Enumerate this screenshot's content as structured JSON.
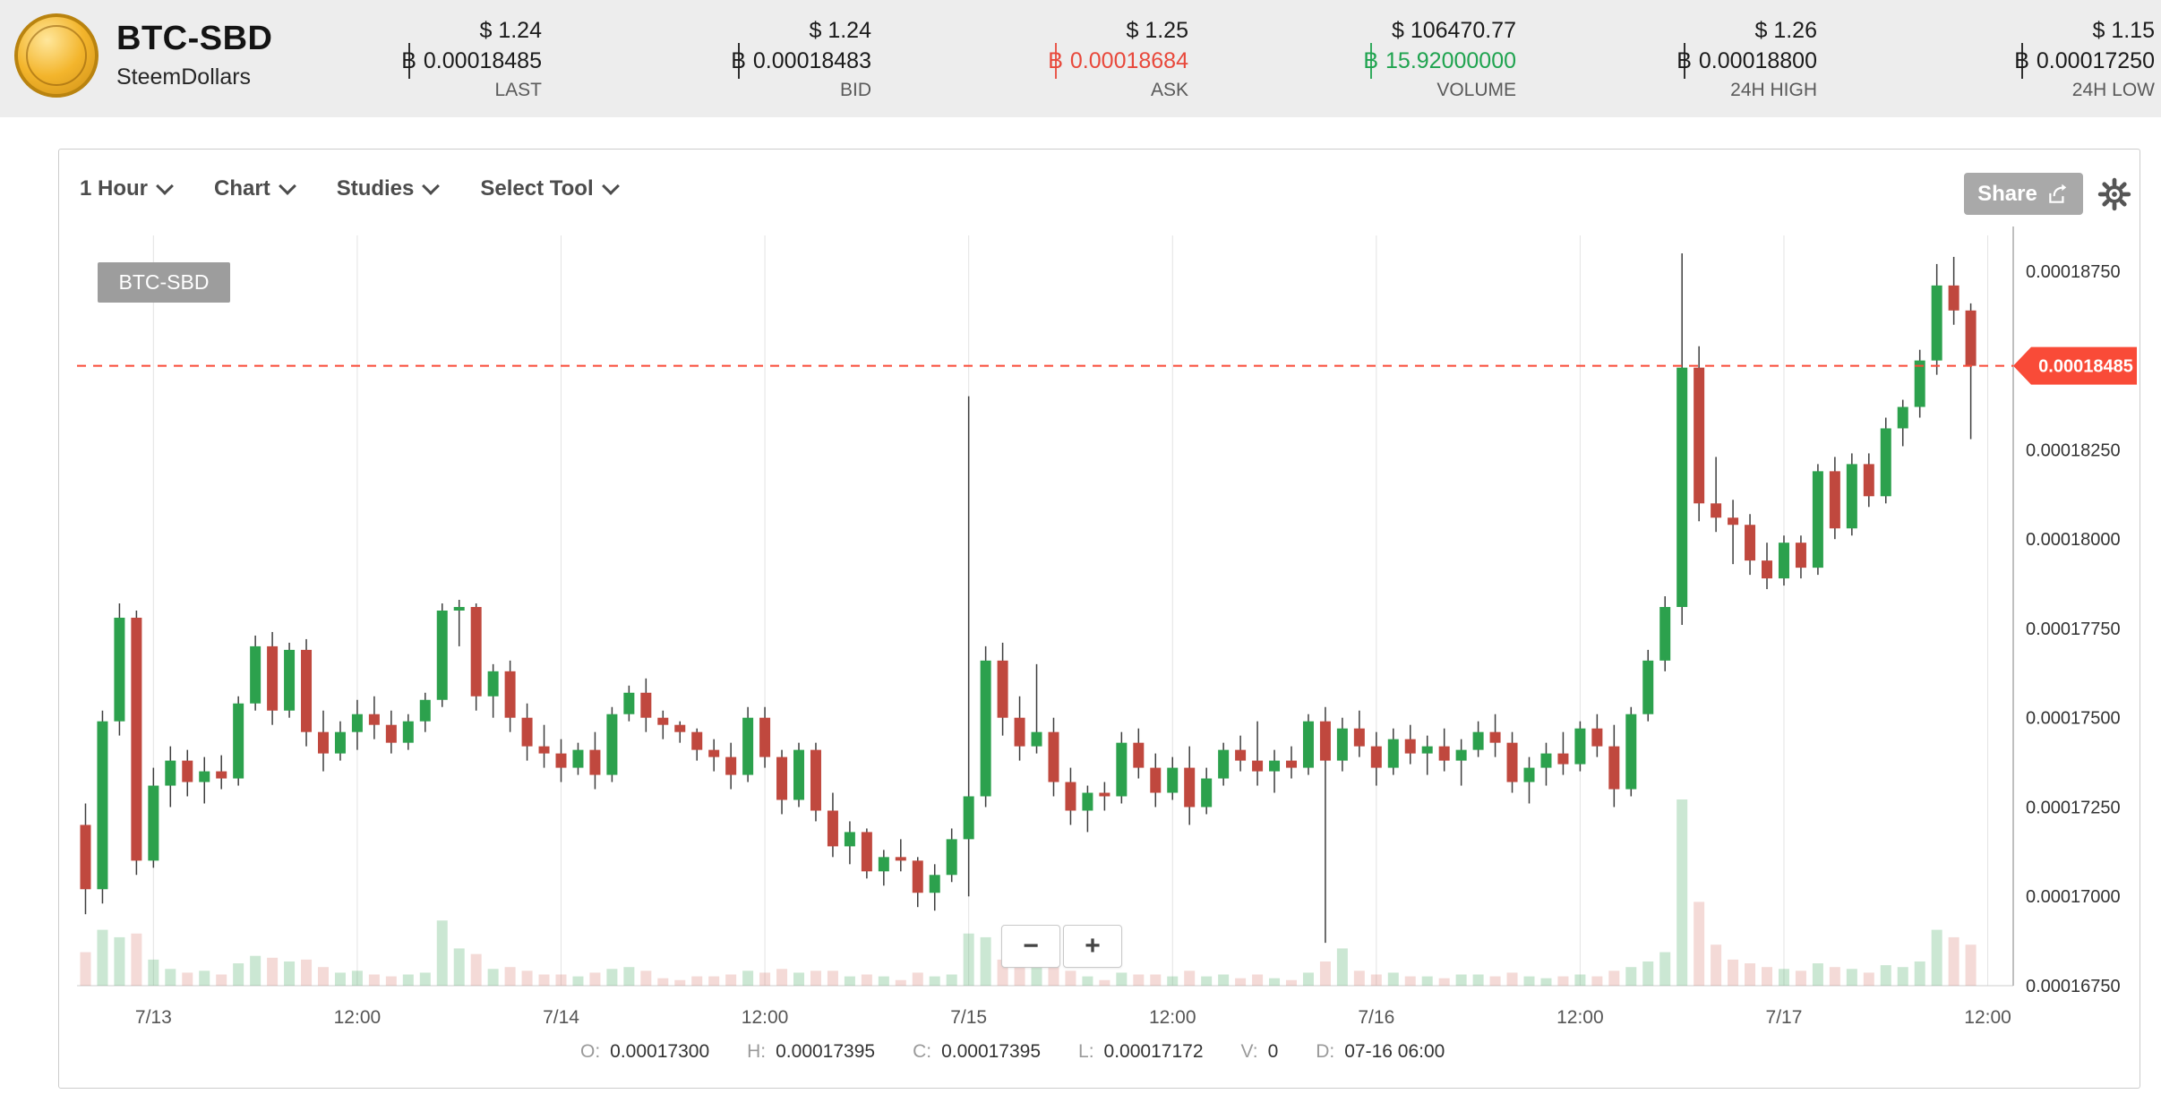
{
  "header": {
    "pair": "BTC-SBD",
    "subtitle": "SteemDollars",
    "btc_symbol": "฿",
    "stats": [
      {
        "usd": "$ 1.24",
        "btc": "0.00018485",
        "label": "LAST"
      },
      {
        "usd": "$ 1.24",
        "btc": "0.00018483",
        "label": "BID"
      },
      {
        "usd": "$ 1.25",
        "btc": "0.00018684",
        "label": "ASK"
      },
      {
        "usd": "$ 106470.77",
        "btc": "15.92000000",
        "label": "VOLUME"
      },
      {
        "usd": "$ 1.26",
        "btc": "0.00018800",
        "label": "24H HIGH"
      },
      {
        "usd": "$ 1.15",
        "btc": "0.00017250",
        "label": "24H LOW"
      }
    ]
  },
  "toolbar": {
    "dropdowns": [
      "1 Hour",
      "Chart",
      "Studies",
      "Select Tool"
    ],
    "share_label": "Share"
  },
  "chart": {
    "symbol_badge": "BTC-SBD",
    "zoom_out": "−",
    "zoom_in": "+",
    "status": {
      "o_label": "O:",
      "o": "0.00017300",
      "h_label": "H:",
      "h": "0.00017395",
      "c_label": "C:",
      "c": "0.00017395",
      "l_label": "L:",
      "l": "0.00017172",
      "v_label": "V:",
      "v": "0",
      "d_label": "D:",
      "d": "07-16 06:00"
    }
  },
  "colors": {
    "up": "#2ca14d",
    "down": "#c0483e",
    "wick": "#3d3d3d",
    "volume_up": "rgba(46,160,80,0.25)",
    "volume_down": "rgba(205,85,75,0.22)",
    "grid": "#e3e3e3",
    "axis": "#aaaaaa",
    "last_price": "#f94b38",
    "ask_text": "#e8483b",
    "volume_text": "#1fa34f",
    "header_bg": "#ededed",
    "badge_bg": "#9d9d9d",
    "share_bg": "#a9a9a9"
  },
  "chart_data": {
    "type": "candlestick",
    "title": "BTC-SBD",
    "interval": "1 Hour",
    "values_unit": "BTC, integer values are price × 1e8",
    "last_price": 0.00018485,
    "y_ticks": [
      18750,
      18500,
      18250,
      18000,
      17750,
      17500,
      17250,
      17000,
      16750
    ],
    "x_ticks": [
      {
        "label": "7/13",
        "slot": 4
      },
      {
        "label": "12:00",
        "slot": 16
      },
      {
        "label": "7/14",
        "slot": 28
      },
      {
        "label": "12:00",
        "slot": 40
      },
      {
        "label": "7/15",
        "slot": 52
      },
      {
        "label": "12:00",
        "slot": 64
      },
      {
        "label": "7/16",
        "slot": 76
      },
      {
        "label": "12:00",
        "slot": 88
      },
      {
        "label": "7/17",
        "slot": 100
      },
      {
        "label": "12:00",
        "slot": 112
      }
    ],
    "total_slots": 114,
    "y_range_top": 18850,
    "y_range_bottom": 16750,
    "candles_format": [
      "open",
      "high",
      "low",
      "close",
      "relative_volume"
    ],
    "candles": [
      [
        17200,
        17260,
        16950,
        17020,
        18
      ],
      [
        17020,
        17520,
        16980,
        17490,
        30
      ],
      [
        17490,
        17820,
        17450,
        17780,
        26
      ],
      [
        17780,
        17800,
        17060,
        17100,
        28
      ],
      [
        17100,
        17360,
        17080,
        17310,
        14
      ],
      [
        17310,
        17420,
        17250,
        17380,
        9
      ],
      [
        17380,
        17410,
        17280,
        17320,
        7
      ],
      [
        17320,
        17390,
        17260,
        17350,
        8
      ],
      [
        17350,
        17395,
        17300,
        17330,
        6
      ],
      [
        17330,
        17560,
        17310,
        17540,
        12
      ],
      [
        17540,
        17730,
        17520,
        17700,
        16
      ],
      [
        17700,
        17740,
        17480,
        17520,
        15
      ],
      [
        17520,
        17710,
        17500,
        17690,
        13
      ],
      [
        17690,
        17720,
        17420,
        17460,
        14
      ],
      [
        17460,
        17520,
        17350,
        17400,
        10
      ],
      [
        17400,
        17490,
        17380,
        17460,
        7
      ],
      [
        17460,
        17550,
        17410,
        17510,
        8
      ],
      [
        17510,
        17560,
        17440,
        17480,
        6
      ],
      [
        17480,
        17520,
        17400,
        17430,
        5
      ],
      [
        17430,
        17510,
        17410,
        17490,
        6
      ],
      [
        17490,
        17570,
        17460,
        17550,
        7
      ],
      [
        17550,
        17820,
        17530,
        17800,
        35
      ],
      [
        17800,
        17830,
        17700,
        17810,
        20
      ],
      [
        17810,
        17820,
        17520,
        17560,
        17
      ],
      [
        17560,
        17650,
        17500,
        17630,
        9
      ],
      [
        17630,
        17660,
        17460,
        17500,
        10
      ],
      [
        17500,
        17540,
        17380,
        17420,
        8
      ],
      [
        17420,
        17480,
        17360,
        17400,
        6
      ],
      [
        17400,
        17440,
        17320,
        17360,
        6
      ],
      [
        17360,
        17430,
        17340,
        17410,
        5
      ],
      [
        17410,
        17460,
        17300,
        17340,
        7
      ],
      [
        17340,
        17530,
        17320,
        17510,
        9
      ],
      [
        17510,
        17590,
        17490,
        17570,
        10
      ],
      [
        17570,
        17610,
        17460,
        17500,
        8
      ],
      [
        17500,
        17520,
        17440,
        17480,
        4
      ],
      [
        17480,
        17490,
        17430,
        17460,
        3
      ],
      [
        17460,
        17470,
        17380,
        17410,
        5
      ],
      [
        17410,
        17440,
        17350,
        17390,
        5
      ],
      [
        17390,
        17430,
        17300,
        17340,
        6
      ],
      [
        17340,
        17530,
        17320,
        17500,
        8
      ],
      [
        17500,
        17530,
        17360,
        17390,
        7
      ],
      [
        17390,
        17410,
        17230,
        17270,
        9
      ],
      [
        17270,
        17430,
        17250,
        17410,
        7
      ],
      [
        17410,
        17430,
        17210,
        17240,
        8
      ],
      [
        17240,
        17290,
        17110,
        17140,
        8
      ],
      [
        17140,
        17210,
        17090,
        17180,
        5
      ],
      [
        17180,
        17190,
        17050,
        17070,
        6
      ],
      [
        17070,
        17130,
        17030,
        17110,
        5
      ],
      [
        17110,
        17160,
        17070,
        17100,
        3
      ],
      [
        17100,
        17110,
        16970,
        17010,
        7
      ],
      [
        17010,
        17090,
        16960,
        17060,
        5
      ],
      [
        17060,
        17190,
        17040,
        17160,
        6
      ],
      [
        17160,
        18400,
        17000,
        17280,
        28
      ],
      [
        17280,
        17700,
        17250,
        17660,
        26
      ],
      [
        17660,
        17710,
        17450,
        17500,
        14
      ],
      [
        17500,
        17560,
        17380,
        17420,
        11
      ],
      [
        17420,
        17650,
        17400,
        17460,
        12
      ],
      [
        17460,
        17500,
        17280,
        17320,
        10
      ],
      [
        17320,
        17360,
        17200,
        17240,
        8
      ],
      [
        17240,
        17310,
        17180,
        17290,
        5
      ],
      [
        17290,
        17320,
        17240,
        17280,
        3
      ],
      [
        17280,
        17460,
        17260,
        17430,
        7
      ],
      [
        17430,
        17470,
        17330,
        17360,
        6
      ],
      [
        17360,
        17400,
        17250,
        17290,
        6
      ],
      [
        17290,
        17390,
        17270,
        17360,
        5
      ],
      [
        17360,
        17420,
        17200,
        17250,
        8
      ],
      [
        17250,
        17360,
        17230,
        17330,
        5
      ],
      [
        17330,
        17430,
        17310,
        17410,
        6
      ],
      [
        17410,
        17450,
        17350,
        17380,
        4
      ],
      [
        17380,
        17490,
        17310,
        17350,
        6
      ],
      [
        17350,
        17410,
        17290,
        17380,
        4
      ],
      [
        17380,
        17420,
        17330,
        17360,
        3
      ],
      [
        17360,
        17510,
        17340,
        17490,
        7
      ],
      [
        17490,
        17530,
        16870,
        17380,
        13
      ],
      [
        17380,
        17500,
        17350,
        17470,
        20
      ],
      [
        17470,
        17520,
        17390,
        17420,
        8
      ],
      [
        17420,
        17460,
        17310,
        17360,
        6
      ],
      [
        17360,
        17470,
        17340,
        17440,
        7
      ],
      [
        17440,
        17480,
        17370,
        17400,
        5
      ],
      [
        17400,
        17450,
        17340,
        17420,
        5
      ],
      [
        17420,
        17470,
        17350,
        17380,
        4
      ],
      [
        17380,
        17440,
        17310,
        17410,
        6
      ],
      [
        17410,
        17490,
        17390,
        17460,
        6
      ],
      [
        17460,
        17510,
        17390,
        17430,
        5
      ],
      [
        17430,
        17460,
        17290,
        17320,
        7
      ],
      [
        17320,
        17390,
        17260,
        17360,
        5
      ],
      [
        17360,
        17430,
        17310,
        17400,
        4
      ],
      [
        17400,
        17460,
        17340,
        17370,
        5
      ],
      [
        17370,
        17490,
        17350,
        17470,
        6
      ],
      [
        17470,
        17510,
        17390,
        17420,
        5
      ],
      [
        17420,
        17480,
        17250,
        17300,
        8
      ],
      [
        17300,
        17530,
        17280,
        17510,
        10
      ],
      [
        17510,
        17690,
        17490,
        17660,
        13
      ],
      [
        17660,
        17840,
        17630,
        17810,
        18
      ],
      [
        17810,
        18800,
        17760,
        18480,
        100
      ],
      [
        18480,
        18540,
        18050,
        18100,
        45
      ],
      [
        18100,
        18230,
        18020,
        18060,
        22
      ],
      [
        18060,
        18110,
        17930,
        18040,
        14
      ],
      [
        18040,
        18070,
        17900,
        17940,
        12
      ],
      [
        17940,
        17990,
        17860,
        17890,
        10
      ],
      [
        17890,
        18010,
        17870,
        17990,
        9
      ],
      [
        17990,
        18010,
        17890,
        17920,
        8
      ],
      [
        17920,
        18210,
        17900,
        18190,
        12
      ],
      [
        18190,
        18230,
        18000,
        18030,
        10
      ],
      [
        18030,
        18240,
        18010,
        18210,
        9
      ],
      [
        18210,
        18240,
        18090,
        18120,
        7
      ],
      [
        18120,
        18340,
        18100,
        18310,
        11
      ],
      [
        18310,
        18390,
        18260,
        18370,
        10
      ],
      [
        18370,
        18530,
        18340,
        18500,
        13
      ],
      [
        18500,
        18770,
        18460,
        18710,
        30
      ],
      [
        18710,
        18790,
        18600,
        18640,
        26
      ],
      [
        18640,
        18660,
        18280,
        18485,
        22
      ]
    ]
  }
}
